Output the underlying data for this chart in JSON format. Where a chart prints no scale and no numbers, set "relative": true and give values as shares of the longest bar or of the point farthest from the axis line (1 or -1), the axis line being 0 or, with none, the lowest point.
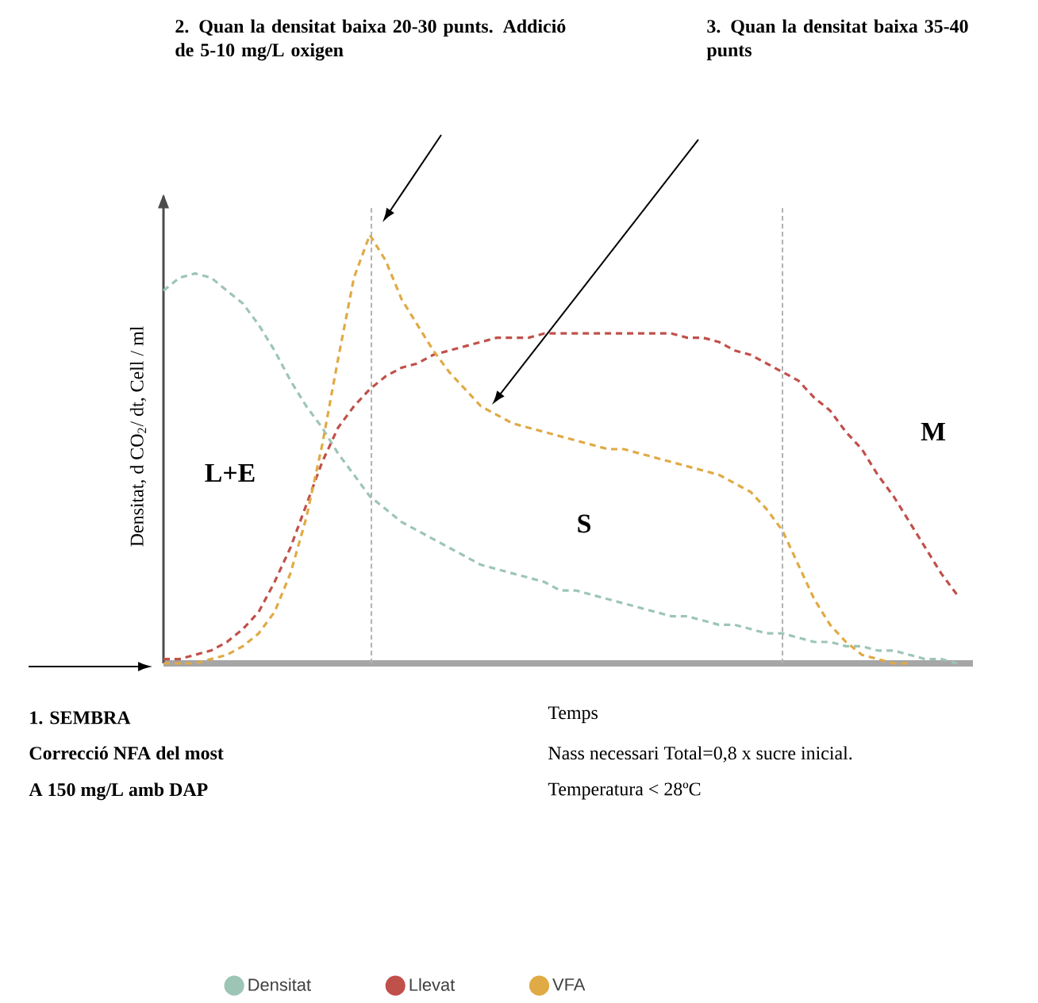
{
  "chart_data": {
    "type": "line",
    "relative": true,
    "xlabel": "Temps",
    "ylabel": "Densitat, d CO$_{2}$/ dt, Cell / ml",
    "categories": [
      null,
      null,
      null,
      null,
      null,
      null,
      null,
      null,
      null,
      null,
      null,
      null,
      null,
      null,
      null,
      null,
      null,
      null,
      null,
      null,
      null,
      null,
      null,
      null,
      null,
      null,
      null,
      null,
      null,
      null,
      null,
      null,
      null,
      null,
      null,
      null,
      null,
      null,
      null,
      null,
      null,
      null,
      null,
      null,
      null,
      null,
      null,
      null,
      null,
      null,
      null
    ],
    "series": [
      {
        "name": "Densitat",
        "color": "#9dc5b5",
        "values": [
          0.87,
          0.9,
          0.91,
          0.9,
          0.87,
          0.84,
          0.79,
          0.73,
          0.66,
          0.6,
          0.55,
          0.49,
          0.44,
          0.39,
          0.36,
          0.33,
          0.31,
          0.29,
          0.27,
          0.25,
          0.23,
          0.22,
          0.21,
          0.2,
          0.19,
          0.17,
          0.17,
          0.16,
          0.15,
          0.14,
          0.13,
          0.12,
          0.11,
          0.11,
          0.1,
          0.09,
          0.09,
          0.08,
          0.07,
          0.07,
          0.06,
          0.05,
          0.05,
          0.04,
          0.04,
          0.03,
          0.03,
          0.02,
          0.01,
          0.01,
          0.0
        ]
      },
      {
        "name": "Llevat",
        "color": "#c0504a",
        "values": [
          0.01,
          0.01,
          0.02,
          0.03,
          0.05,
          0.08,
          0.12,
          0.19,
          0.27,
          0.37,
          0.47,
          0.55,
          0.6,
          0.64,
          0.67,
          0.69,
          0.7,
          0.72,
          0.73,
          0.74,
          0.75,
          0.76,
          0.76,
          0.76,
          0.77,
          0.77,
          0.77,
          0.77,
          0.77,
          0.77,
          0.77,
          0.77,
          0.77,
          0.76,
          0.76,
          0.75,
          0.73,
          0.72,
          0.7,
          0.68,
          0.66,
          0.62,
          0.59,
          0.54,
          0.5,
          0.44,
          0.39,
          0.33,
          0.27,
          0.21,
          0.16
        ]
      },
      {
        "name": "VFA",
        "color": "#e0aa45",
        "values": [
          0.0,
          0.0,
          0.0,
          0.01,
          0.02,
          0.04,
          0.07,
          0.12,
          0.21,
          0.34,
          0.51,
          0.71,
          0.9,
          1.0,
          0.94,
          0.85,
          0.79,
          0.73,
          0.68,
          0.64,
          0.6,
          0.58,
          0.56,
          0.55,
          0.54,
          0.53,
          0.52,
          0.51,
          0.5,
          0.5,
          0.49,
          0.48,
          0.47,
          0.46,
          0.45,
          0.44,
          0.42,
          0.4,
          0.36,
          0.31,
          0.23,
          0.15,
          0.09,
          0.05,
          0.02,
          0.01,
          0.0,
          0.0,
          null,
          null,
          null
        ]
      }
    ],
    "line_style": "dashed",
    "marker": "none",
    "legend": "bottom",
    "annotations": [
      "2. Quan la densitat baixa 20-30 punts. Addició de 5-10 mg/L oxigen",
      "3. Quan la densitat baixa 35-40 punts",
      "L+E",
      "S",
      "M",
      "1. SEMBRA",
      "Correcció NFA del most",
      "A 150 mg/L  amb DAP",
      "Nass necessari Total=0,8 x sucre inicial.",
      "Temperatura < 28ºC"
    ]
  }
}
